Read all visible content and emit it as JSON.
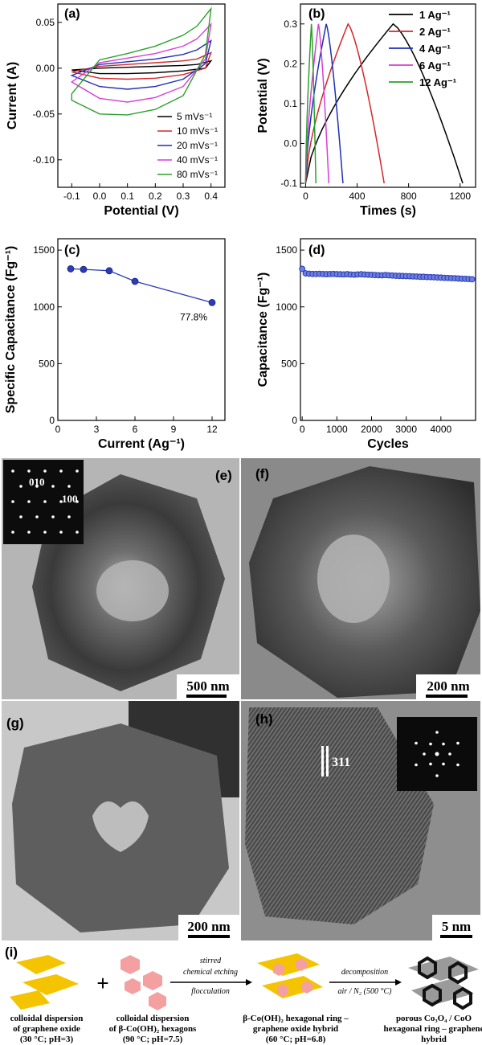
{
  "chart_data": [
    {
      "panel": "(a)",
      "type": "line",
      "xlabel": "Potential (V)",
      "ylabel": "Current (A)",
      "xlim": [
        -0.15,
        0.45
      ],
      "ylim": [
        -0.13,
        0.07
      ],
      "x_ticks": [
        "-0.1",
        "0.0",
        "0.1",
        "0.2",
        "0.3",
        "0.4"
      ],
      "y_ticks": [
        "0.05",
        "0.00",
        "-0.05",
        "-0.10"
      ],
      "legend": "lower-right",
      "series": [
        {
          "name": "5 mVs⁻¹",
          "color": "#000000",
          "upper": [
            [
              -0.1,
              -0.002
            ],
            [
              0.0,
              0.0
            ],
            [
              0.1,
              0.001
            ],
            [
              0.2,
              0.002
            ],
            [
              0.3,
              0.003
            ],
            [
              0.35,
              0.004
            ],
            [
              0.4,
              0.008
            ]
          ],
          "lower": [
            [
              0.4,
              0.008
            ],
            [
              0.38,
              0.0
            ],
            [
              0.3,
              -0.003
            ],
            [
              0.2,
              -0.005
            ],
            [
              0.1,
              -0.006
            ],
            [
              0.0,
              -0.006
            ],
            [
              -0.1,
              -0.002
            ]
          ]
        },
        {
          "name": "10 mVs⁻¹",
          "color": "#d62728",
          "upper": [
            [
              -0.1,
              -0.004
            ],
            [
              0.0,
              0.002
            ],
            [
              0.1,
              0.004
            ],
            [
              0.2,
              0.006
            ],
            [
              0.3,
              0.008
            ],
            [
              0.35,
              0.01
            ],
            [
              0.4,
              0.017
            ]
          ],
          "lower": [
            [
              0.4,
              0.017
            ],
            [
              0.38,
              0.0
            ],
            [
              0.3,
              -0.007
            ],
            [
              0.2,
              -0.011
            ],
            [
              0.1,
              -0.012
            ],
            [
              0.0,
              -0.011
            ],
            [
              -0.1,
              -0.004
            ]
          ]
        },
        {
          "name": "20 mVs⁻¹",
          "color": "#1f2fb4",
          "upper": [
            [
              -0.1,
              -0.008
            ],
            [
              0.0,
              0.004
            ],
            [
              0.1,
              0.007
            ],
            [
              0.2,
              0.01
            ],
            [
              0.3,
              0.015
            ],
            [
              0.35,
              0.02
            ],
            [
              0.4,
              0.03
            ]
          ],
          "lower": [
            [
              0.4,
              0.03
            ],
            [
              0.38,
              0.005
            ],
            [
              0.3,
              -0.012
            ],
            [
              0.2,
              -0.02
            ],
            [
              0.1,
              -0.023
            ],
            [
              0.0,
              -0.02
            ],
            [
              -0.1,
              -0.008
            ]
          ]
        },
        {
          "name": "40 mVs⁻¹",
          "color": "#d63fd6",
          "upper": [
            [
              -0.1,
              -0.015
            ],
            [
              0.0,
              0.006
            ],
            [
              0.1,
              0.011
            ],
            [
              0.2,
              0.016
            ],
            [
              0.3,
              0.024
            ],
            [
              0.35,
              0.032
            ],
            [
              0.4,
              0.048
            ]
          ],
          "lower": [
            [
              0.4,
              0.048
            ],
            [
              0.38,
              0.01
            ],
            [
              0.3,
              -0.02
            ],
            [
              0.2,
              -0.032
            ],
            [
              0.1,
              -0.037
            ],
            [
              0.0,
              -0.033
            ],
            [
              -0.1,
              -0.015
            ]
          ]
        },
        {
          "name": "80 mVs⁻¹",
          "color": "#2ca02c",
          "upper": [
            [
              -0.1,
              -0.028
            ],
            [
              0.0,
              0.009
            ],
            [
              0.1,
              0.016
            ],
            [
              0.2,
              0.024
            ],
            [
              0.3,
              0.036
            ],
            [
              0.35,
              0.046
            ],
            [
              0.4,
              0.065
            ]
          ],
          "lower": [
            [
              0.4,
              0.065
            ],
            [
              0.38,
              0.015
            ],
            [
              0.3,
              -0.03
            ],
            [
              0.2,
              -0.045
            ],
            [
              0.1,
              -0.051
            ],
            [
              0.0,
              -0.05
            ],
            [
              -0.1,
              -0.035
            ]
          ]
        }
      ]
    },
    {
      "panel": "(b)",
      "type": "line",
      "xlabel": "Times (s)",
      "ylabel": "Potential (V)",
      "xlim": [
        -40,
        1320
      ],
      "ylim": [
        -0.11,
        0.35
      ],
      "x_ticks": [
        "0",
        "400",
        "800",
        "1200"
      ],
      "y_ticks": [
        "0.3",
        "0.2",
        "0.1",
        "0.0",
        "-0.1"
      ],
      "legend": "top-right",
      "series": [
        {
          "name": "1 Ag⁻¹",
          "color": "#000000",
          "charge_end": 680,
          "discharge_end": 1220
        },
        {
          "name": "2 Ag⁻¹",
          "color": "#d62728",
          "charge_end": 330,
          "discharge_end": 610
        },
        {
          "name": "4 Ag⁻¹",
          "color": "#1f2fb4",
          "charge_end": 160,
          "discharge_end": 290
        },
        {
          "name": "6 Ag⁻¹",
          "color": "#d63fd6",
          "charge_end": 100,
          "discharge_end": 180
        },
        {
          "name": "12 Ag⁻¹",
          "color": "#2ca02c",
          "charge_end": 45,
          "discharge_end": 80
        }
      ]
    },
    {
      "panel": "(c)",
      "type": "line",
      "xlabel": "Current (Ag⁻¹)",
      "ylabel": "Specific Capacitance (Fg⁻¹)",
      "xlim": [
        0,
        13
      ],
      "ylim": [
        0,
        1600
      ],
      "x_ticks": [
        "0",
        "3",
        "6",
        "9",
        "12"
      ],
      "y_ticks": [
        "0",
        "500",
        "1000",
        "1500"
      ],
      "x": [
        1,
        2,
        4,
        6,
        12
      ],
      "values": [
        1335,
        1330,
        1318,
        1225,
        1038
      ],
      "color": "#2a3cb8",
      "annotation": "77.8%"
    },
    {
      "panel": "(d)",
      "type": "scatter",
      "xlabel": "Cycles",
      "ylabel": "Capacitance (Fg⁻¹)",
      "xlim": [
        -50,
        5000
      ],
      "ylim": [
        0,
        1600
      ],
      "x_ticks": [
        "0",
        "1000",
        "2000",
        "3000",
        "4000"
      ],
      "y_ticks": [
        "0",
        "500",
        "1000",
        "1500"
      ],
      "x": [
        0,
        100,
        200,
        300,
        400,
        500,
        600,
        700,
        800,
        900,
        1000,
        1100,
        1200,
        1300,
        1400,
        1500,
        1600,
        1700,
        1800,
        1900,
        2000,
        2100,
        2200,
        2300,
        2400,
        2500,
        2600,
        2700,
        2800,
        2900,
        3000,
        3100,
        3200,
        3300,
        3400,
        3500,
        3600,
        3700,
        3800,
        3900,
        4000,
        4100,
        4200,
        4300,
        4400,
        4500,
        4600,
        4700,
        4800,
        4900
      ],
      "values": [
        1335,
        1295,
        1292,
        1290,
        1290,
        1291,
        1289,
        1288,
        1289,
        1290,
        1288,
        1287,
        1286,
        1288,
        1285,
        1283,
        1286,
        1287,
        1285,
        1283,
        1282,
        1280,
        1279,
        1278,
        1280,
        1278,
        1276,
        1274,
        1273,
        1272,
        1271,
        1270,
        1268,
        1267,
        1265,
        1265,
        1263,
        1262,
        1261,
        1259,
        1258,
        1256,
        1255,
        1253,
        1252,
        1250,
        1248,
        1247,
        1245,
        1243
      ],
      "color": "#2a3cb8"
    }
  ],
  "panel_labels": {
    "a": "(a)",
    "b": "(b)",
    "c": "(c)",
    "d": "(d)",
    "e": "(e)",
    "f": "(f)",
    "g": "(g)",
    "h": "(h)",
    "i": "(i)"
  },
  "tem": {
    "saed_label_1": "010",
    "saed_label_2": "100",
    "scale_e": "500 nm",
    "scale_f": "200 nm",
    "scale_g": "200 nm",
    "scale_h": "5 nm",
    "lattice_label": "311"
  },
  "scheme": {
    "plus": "+",
    "step1_above_1": "stirred",
    "step1_above_2": "chemical etching",
    "step1_below": "flocculation",
    "step2_above": "decomposition",
    "step2_below": "air / N₂ (500 °C)",
    "label1_line1": "colloidal  dispersion",
    "label1_line2": "of graphene oxide",
    "label1_line3": "(30 °C; pH=3)",
    "label2_line1": "colloidal  dispersion",
    "label2_line2": "of β-Co(OH)₂ hexagons",
    "label2_line3": "(90 °C; pH=7.5)",
    "label3_line1": "β-Co(OH)₂ hexagonal ring –",
    "label3_line2": "graphene oxide hybrid",
    "label3_line3": "(60 °C; pH=6.8)",
    "label4_line1": "porous Co₃O₄ / CoO",
    "label4_line2": "hexagonal ring – graphene",
    "label4_line3": "hybrid"
  }
}
